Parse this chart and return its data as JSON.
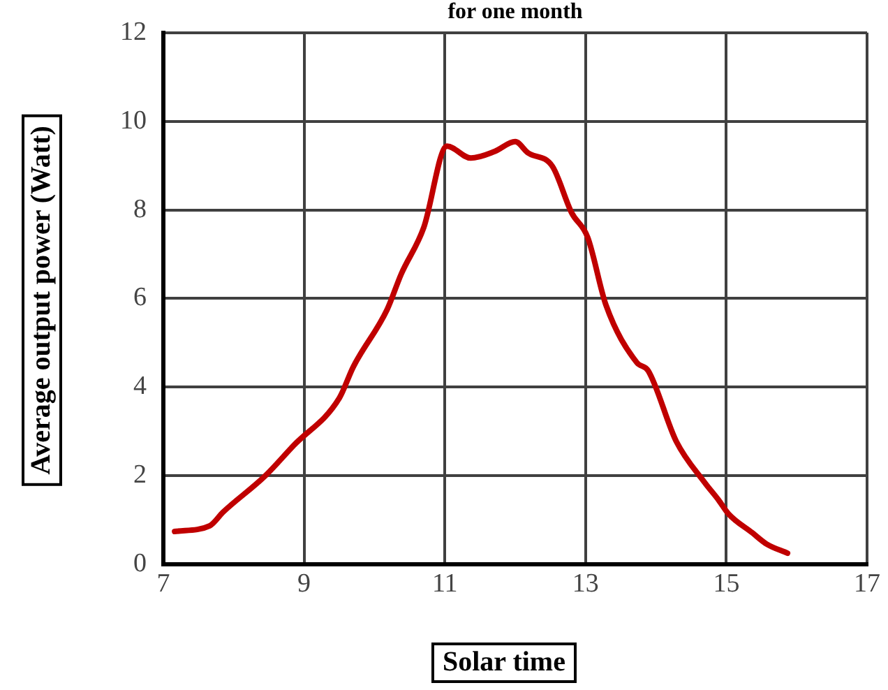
{
  "chart_data": {
    "type": "line",
    "title": "for one month",
    "xlabel": "Solar time",
    "ylabel": "Average output power (Watt)",
    "x": [
      7.16,
      7.66,
      7.85,
      8.45,
      8.85,
      9.5,
      9.7,
      10.18,
      10.38,
      10.7,
      11.03,
      11.37,
      11.71,
      12.0,
      12.18,
      12.53,
      12.8,
      13.03,
      13.29,
      13.73,
      13.89,
      14.29,
      14.69,
      14.89,
      15.03,
      15.37,
      15.57,
      15.87
    ],
    "series": [
      {
        "color": "#c00000",
        "values": [
          0.74,
          0.87,
          1.18,
          2.0,
          2.68,
          3.75,
          4.46,
          5.75,
          6.55,
          7.6,
          9.44,
          9.17,
          9.32,
          9.54,
          9.29,
          8.98,
          7.94,
          7.38,
          5.85,
          4.55,
          4.37,
          2.77,
          1.85,
          1.45,
          1.14,
          0.71,
          0.46,
          0.25
        ]
      }
    ],
    "xlim": [
      7,
      17
    ],
    "xticks": [
      7,
      9,
      11,
      13,
      15,
      17
    ],
    "ylim": [
      0,
      12
    ],
    "yticks": [
      0,
      2,
      4,
      6,
      8,
      10,
      12
    ],
    "grid": true,
    "legend": false,
    "marker": "none",
    "line_style": "solid"
  }
}
